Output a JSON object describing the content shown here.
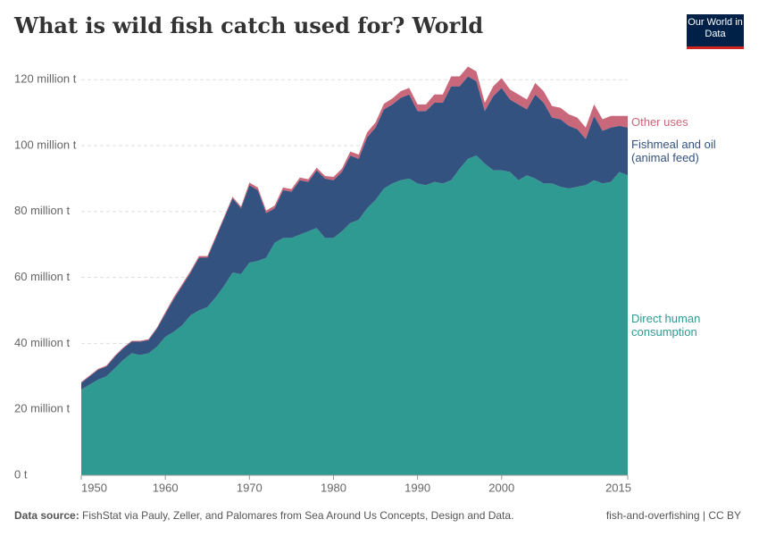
{
  "chart_data": {
    "type": "stacked-area",
    "title": "What is wild fish catch used for? World",
    "x": [
      1950,
      1951,
      1952,
      1953,
      1954,
      1955,
      1956,
      1957,
      1958,
      1959,
      1960,
      1961,
      1962,
      1963,
      1964,
      1965,
      1966,
      1967,
      1968,
      1969,
      1970,
      1971,
      1972,
      1973,
      1974,
      1975,
      1976,
      1977,
      1978,
      1979,
      1980,
      1981,
      1982,
      1983,
      1984,
      1985,
      1986,
      1987,
      1988,
      1989,
      1990,
      1991,
      1992,
      1993,
      1994,
      1995,
      1996,
      1997,
      1998,
      1999,
      2000,
      2001,
      2002,
      2003,
      2004,
      2005,
      2006,
      2007,
      2008,
      2009,
      2010,
      2011,
      2012,
      2013,
      2014,
      2015
    ],
    "series": [
      {
        "name": "Direct human consumption",
        "color": "#2f9a92",
        "values": [
          26,
          27.5,
          29,
          30,
          32.5,
          35,
          37,
          36.5,
          37,
          39,
          42,
          43.5,
          45.5,
          48.5,
          50,
          51,
          54,
          57.5,
          61.5,
          61,
          64.5,
          65,
          66,
          70.5,
          72,
          72,
          73,
          74,
          75,
          72,
          72,
          74,
          76.5,
          77.5,
          81,
          83.5,
          87,
          88.5,
          89.5,
          90,
          88.5,
          88,
          89,
          88.5,
          89.5,
          93,
          96,
          97,
          94.5,
          92.5,
          92.5,
          92,
          89.5,
          91,
          90,
          88.5,
          88.5,
          87.5,
          87,
          87.5,
          88,
          89.5,
          88.5,
          89,
          92,
          91
        ]
      },
      {
        "name": "Fishmeal and oil (animal feed)",
        "color": "#34527f",
        "values": [
          2,
          2.5,
          3,
          3,
          3.5,
          3.5,
          3.5,
          4,
          4,
          5.5,
          7,
          10,
          12,
          13,
          16,
          15,
          18,
          20.5,
          22.5,
          20,
          23.5,
          21.5,
          13.5,
          10.5,
          14.5,
          14,
          16.5,
          15,
          17.5,
          18,
          17.5,
          18,
          20.5,
          18.5,
          21.5,
          22,
          24,
          24,
          25,
          25.5,
          22,
          22.5,
          24,
          24.5,
          28.5,
          25,
          25,
          22.5,
          16,
          22.5,
          25,
          22,
          23,
          20,
          25.5,
          24.5,
          20,
          20.5,
          19,
          17.5,
          14,
          19.5,
          16,
          16.5,
          14,
          14.5
        ]
      },
      {
        "name": "Other uses",
        "color": "#c8687a",
        "values": [
          0.3,
          0.3,
          0.3,
          0.3,
          0.3,
          0.3,
          0.3,
          0.3,
          0.3,
          0.3,
          0.5,
          0.5,
          0.5,
          0.5,
          0.5,
          0.5,
          0.5,
          0.5,
          0.5,
          0.5,
          0.8,
          0.8,
          0.8,
          0.8,
          0.8,
          0.8,
          0.8,
          0.8,
          0.8,
          0.8,
          1,
          1,
          1.2,
          1.3,
          1.5,
          1.5,
          1.7,
          1.8,
          2,
          2,
          2,
          2,
          2.5,
          2.5,
          3,
          3,
          3,
          3,
          2.5,
          3,
          3,
          3,
          3,
          3,
          3.5,
          3.5,
          3.5,
          3.5,
          3.5,
          3.5,
          3.5,
          3.5,
          3.5,
          3.5,
          3,
          3.5
        ]
      }
    ],
    "xlim": [
      1950,
      2015
    ],
    "xticks": [
      1950,
      1960,
      1970,
      1980,
      1990,
      2000,
      2015
    ],
    "ylim": [
      0,
      125
    ],
    "yticks": [
      {
        "value": 0,
        "label": "0 t"
      },
      {
        "value": 20,
        "label": "20 million t"
      },
      {
        "value": 40,
        "label": "40 million t"
      },
      {
        "value": 60,
        "label": "60 million t"
      },
      {
        "value": 80,
        "label": "80 million t"
      },
      {
        "value": 100,
        "label": "100 million t"
      },
      {
        "value": 120,
        "label": "120 million t"
      }
    ],
    "grid": true
  },
  "logo": "Our World in Data",
  "footer": {
    "source_label": "Data source:",
    "source": "FishStat via Pauly, Zeller, and Palomares from Sea Around Us Concepts, Design and Data.",
    "url": "fish-and-overfishing | CC BY"
  }
}
